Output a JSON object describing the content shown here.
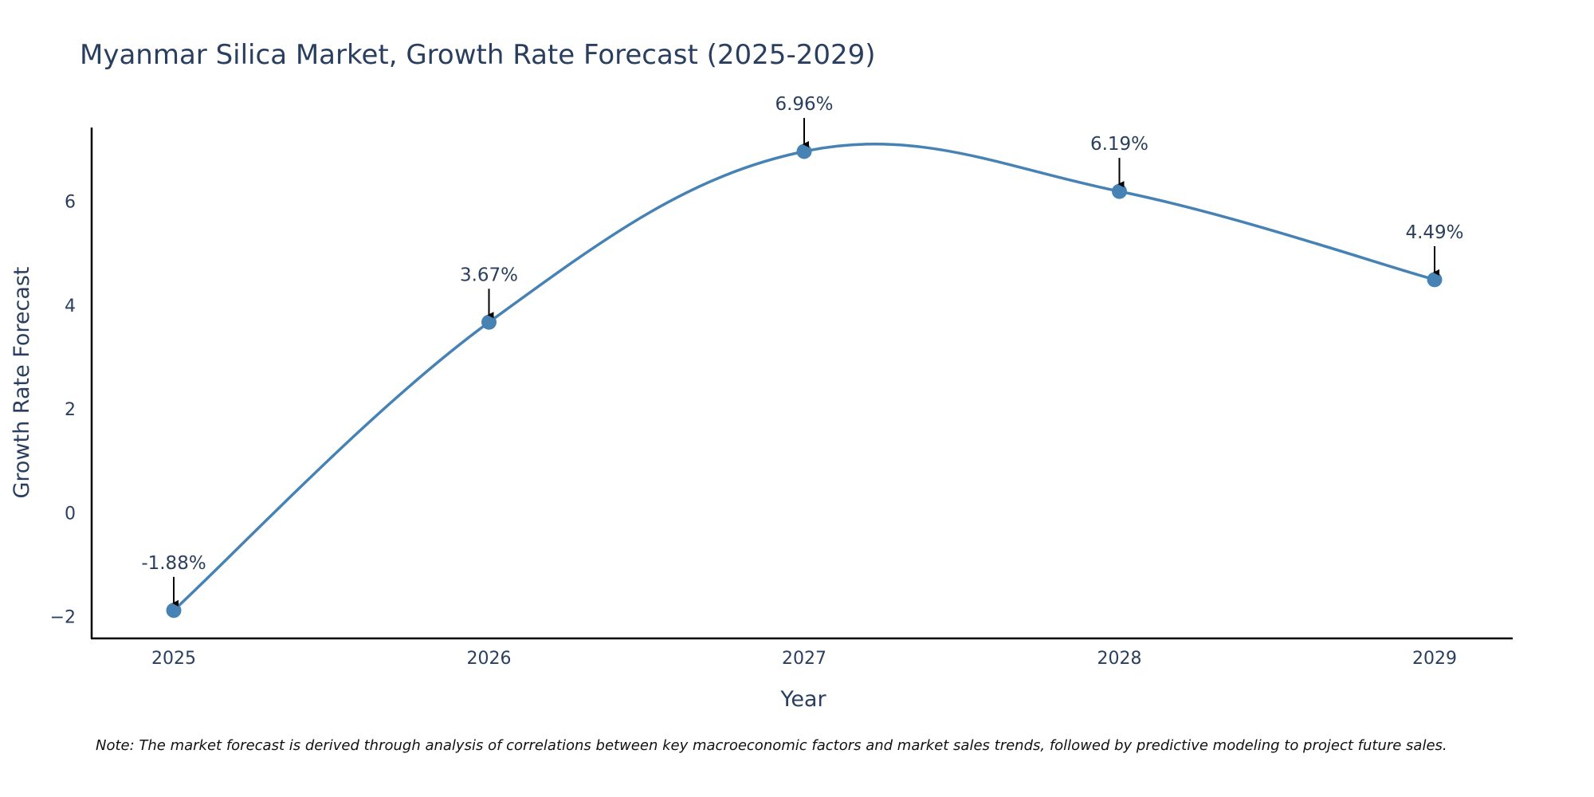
{
  "chart_data": {
    "type": "line",
    "title": "Myanmar Silica Market, Growth Rate Forecast (2025-2029)",
    "xlabel": "Year",
    "ylabel": "Growth Rate Forecast",
    "categories": [
      "2025",
      "2026",
      "2027",
      "2028",
      "2029"
    ],
    "series": [
      {
        "name": "Growth Rate Forecast",
        "values": [
          -1.88,
          3.67,
          6.96,
          6.19,
          4.49
        ],
        "labels": [
          "-1.88%",
          "3.67%",
          "6.96%",
          "6.19%",
          "4.49%"
        ]
      }
    ],
    "y_ticks": [
      -2,
      0,
      2,
      4,
      6
    ],
    "y_tick_labels": [
      "−2",
      "0",
      "2",
      "4",
      "6"
    ],
    "ylim": [
      -2.42,
      7.42
    ],
    "grid": false,
    "legend": "none",
    "note": "Note: The market forecast is derived through analysis of correlations between key macroeconomic factors and market sales trends, followed by predictive modeling to project future sales.",
    "colors": {
      "line": "#4682b4",
      "marker": "#4682b4",
      "axis": "#000000",
      "text": "#2a3f5f",
      "arrow": "#000000"
    }
  }
}
